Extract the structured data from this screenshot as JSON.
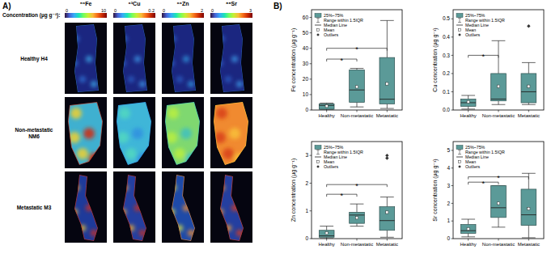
{
  "panel_a": {
    "label": "A)",
    "colorbar_title": "Concentration (µg g⁻¹):",
    "elements": [
      {
        "name": "⁵⁶Fe",
        "range": [
          0,
          10
        ]
      },
      {
        "name": "⁶³Cu",
        "range": [
          0,
          0.2
        ]
      },
      {
        "name": "⁶⁶Zn",
        "range": [
          0,
          2
        ]
      },
      {
        "name": "⁸⁸Sr",
        "range": [
          0,
          3
        ]
      }
    ],
    "rows": [
      [
        "Healthy H4"
      ],
      [
        "Non-metastatic",
        "NM6"
      ],
      [
        "Metastatic M3"
      ]
    ]
  },
  "panel_b_label": "B)",
  "chart_data": [
    {
      "type": "box",
      "y_label": "Fe concentration (µg g⁻¹)",
      "categories": [
        "Healthy",
        "Non-metastatic",
        "Metastatic"
      ],
      "boxes": [
        {
          "min": 0,
          "q1": 0.5,
          "median": 3,
          "q3": 4,
          "max": 4.5,
          "mean": 2.5,
          "outliers": []
        },
        {
          "min": 2,
          "q1": 5,
          "median": 13,
          "q3": 26,
          "max": 27,
          "mean": 15,
          "outliers": []
        },
        {
          "min": 1,
          "q1": 4,
          "median": 7,
          "q3": 34,
          "max": 58,
          "mean": 17,
          "outliers": []
        }
      ],
      "color": "#5b9a98",
      "legend": "upper left",
      "legend_entries": [
        "25%~75%",
        "Range within 1.5IQR",
        "Median Line",
        "Mean",
        "Outliers"
      ],
      "ylim": [
        0,
        65
      ],
      "yticks": [
        0,
        10,
        20,
        30,
        40,
        50,
        60
      ],
      "significance": [
        {
          "from": 0,
          "to": 1,
          "value": 33,
          "label": "*"
        },
        {
          "from": 0,
          "to": 2,
          "value": 40,
          "label": "*"
        }
      ]
    },
    {
      "type": "box",
      "y_label": "Cu concentration (µg g⁻¹)",
      "categories": [
        "Healthy",
        "Non-metastatic",
        "Metastatic"
      ],
      "boxes": [
        {
          "min": 0.005,
          "q1": 0.02,
          "median": 0.04,
          "q3": 0.06,
          "max": 0.08,
          "mean": 0.045,
          "outliers": []
        },
        {
          "min": 0.03,
          "q1": 0.05,
          "median": 0.06,
          "q3": 0.2,
          "max": 0.38,
          "mean": 0.13,
          "outliers": []
        },
        {
          "min": 0.03,
          "q1": 0.04,
          "median": 0.1,
          "q3": 0.2,
          "max": 0.26,
          "mean": 0.13,
          "outliers": [
            0.46
          ]
        }
      ],
      "color": "#5b9a98",
      "legend": "upper left",
      "legend_entries": [
        "25%~75%",
        "Range within 1.5IQR",
        "Median Line",
        "Mean",
        "Outliers"
      ],
      "ylim": [
        0,
        0.55
      ],
      "yticks": [
        {
          "value": 0,
          "label": "0.0"
        },
        0.1,
        0.2,
        0.3,
        0.4,
        0.5
      ],
      "significance": [
        {
          "from": 0,
          "to": 1,
          "value": 0.3,
          "label": "*"
        }
      ]
    },
    {
      "type": "box",
      "y_label": "Zn concentration (µg g⁻¹)",
      "categories": [
        "Healthy",
        "Non-metastatic",
        "Metastatic"
      ],
      "boxes": [
        {
          "min": 0,
          "q1": 0.05,
          "median": 0.1,
          "q3": 0.3,
          "max": 0.45,
          "mean": 0.2,
          "outliers": []
        },
        {
          "min": 0.45,
          "q1": 0.55,
          "median": 0.85,
          "q3": 0.95,
          "max": 1.25,
          "mean": 0.75,
          "outliers": []
        },
        {
          "min": 0.05,
          "q1": 0.3,
          "median": 0.65,
          "q3": 1.15,
          "max": 1.5,
          "mean": 0.95,
          "outliers": [
            2.9,
            3.0
          ]
        }
      ],
      "color": "#5b9a98",
      "legend": "upper left",
      "legend_entries": [
        "25%~75%",
        "Range within 1.5IQR",
        "Median Line",
        "Mean",
        "Outliers"
      ],
      "ylim": [
        0,
        3.5
      ],
      "yticks": [
        0,
        1,
        2,
        3
      ],
      "significance": [
        {
          "from": 0,
          "to": 1,
          "value": 1.6,
          "label": "*"
        },
        {
          "from": 0,
          "to": 2,
          "value": 1.95,
          "label": "*"
        }
      ]
    },
    {
      "type": "box",
      "y_label": "Sr concentration (µg g⁻¹)",
      "categories": [
        "Healthy",
        "Non-metastatic",
        "Metastatic"
      ],
      "boxes": [
        {
          "min": 0.1,
          "q1": 0.3,
          "median": 0.45,
          "q3": 0.8,
          "max": 1.1,
          "mean": 0.55,
          "outliers": []
        },
        {
          "min": 0.65,
          "q1": 1.2,
          "median": 1.75,
          "q3": 3.0,
          "max": 3.0,
          "mean": 2.0,
          "outliers": []
        },
        {
          "min": 0.05,
          "q1": 0.75,
          "median": 1.35,
          "q3": 2.8,
          "max": 3.7,
          "mean": 1.7,
          "outliers": []
        }
      ],
      "color": "#5b9a98",
      "legend": "upper left",
      "legend_entries": [
        "25%~75%",
        "Range within 1.5IQR",
        "Median Line",
        "Mean",
        "Outliers"
      ],
      "ylim": [
        0,
        5.5
      ],
      "yticks": [
        0,
        1,
        2,
        3,
        4,
        5
      ],
      "significance": [
        {
          "from": 0,
          "to": 1,
          "value": 3.2,
          "label": "*"
        },
        {
          "from": 0,
          "to": 2,
          "value": 3.5,
          "label": "*"
        }
      ]
    }
  ]
}
